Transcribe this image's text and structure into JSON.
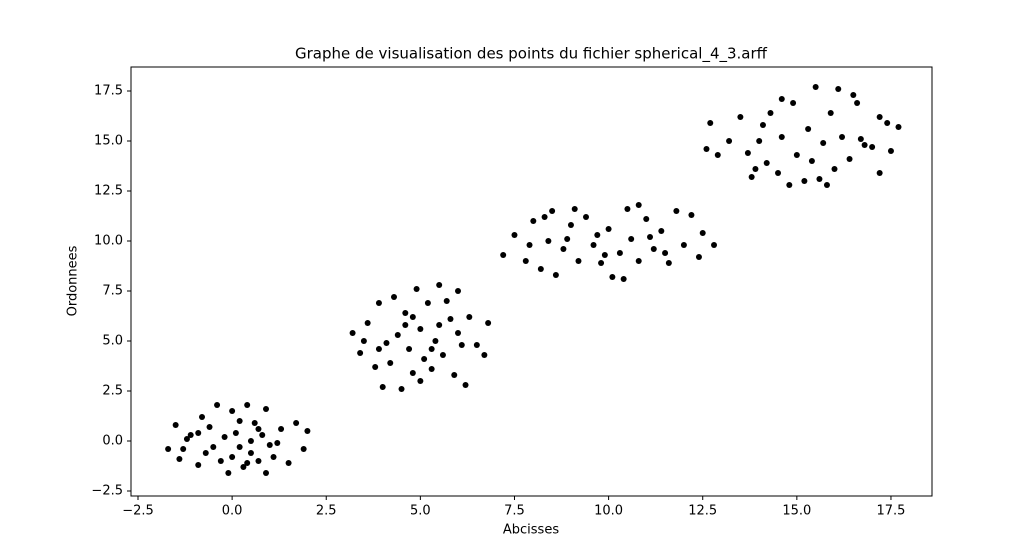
{
  "chart_data": {
    "type": "scatter",
    "title": "Graphe de visualisation des points du fichier spherical_4_3.arff",
    "x_label": "Abcisses",
    "y_label": "Ordonnees",
    "color": "#000000",
    "xlim": [
      -2.686,
      18.59
    ],
    "ylim": [
      -2.75,
      18.7
    ],
    "xticks": [
      {
        "value": -2.5,
        "label": "−2.5"
      },
      {
        "value": 0,
        "label": "0.0"
      },
      2.5,
      {
        "value": 5,
        "label": "5.0"
      },
      7.5,
      {
        "value": 10,
        "label": "10.0"
      },
      12.5,
      {
        "value": 15,
        "label": "15.0"
      },
      17.5
    ],
    "yticks": [
      {
        "value": -2.5,
        "label": "−2.5"
      },
      {
        "value": 0,
        "label": "0.0"
      },
      2.5,
      {
        "value": 5,
        "label": "5.0"
      },
      7.5,
      {
        "value": 10,
        "label": "10.0"
      },
      12.5,
      {
        "value": 15,
        "label": "15.0"
      },
      17.5
    ],
    "x": [
      -1.7,
      -1.5,
      -1.3,
      -1.1,
      -0.9,
      -0.8,
      -0.6,
      -0.5,
      -0.4,
      -0.3,
      -0.2,
      0,
      0,
      0.1,
      0.2,
      0.3,
      0.4,
      0.5,
      0.6,
      0.7,
      0.8,
      0.9,
      1.0,
      1.1,
      1.3,
      1.5,
      1.7,
      1.9,
      2.0,
      -1.4,
      -0.9,
      0.2,
      0.9,
      -0.1,
      1.2,
      -0.7,
      0.5,
      -1.2,
      0.7,
      0.4,
      3.2,
      3.4,
      3.6,
      3.8,
      3.9,
      4.0,
      4.1,
      4.3,
      4.4,
      4.5,
      4.6,
      4.7,
      4.8,
      4.9,
      5.0,
      5.1,
      5.2,
      5.3,
      5.4,
      5.5,
      5.6,
      5.8,
      5.9,
      6.0,
      6.1,
      6.2,
      6.3,
      6.5,
      6.7,
      6.8,
      3.5,
      4.2,
      5.7,
      4.6,
      5.3,
      6.0,
      3.9,
      5.0,
      4.8,
      5.5,
      7.2,
      7.5,
      7.8,
      8.0,
      8.2,
      8.4,
      8.5,
      8.6,
      8.8,
      9.0,
      9.2,
      9.4,
      9.6,
      9.8,
      10.0,
      10.1,
      10.3,
      10.5,
      10.6,
      10.8,
      11.0,
      11.2,
      11.4,
      11.6,
      11.8,
      12.0,
      12.2,
      12.5,
      12.8,
      12.4,
      8.3,
      9.1,
      10.8,
      11.5,
      7.9,
      9.7,
      10.4,
      9.9,
      8.9,
      11.1,
      12.6,
      12.7,
      12.9,
      13.2,
      13.5,
      13.7,
      13.8,
      14.0,
      14.2,
      14.3,
      14.5,
      14.6,
      14.8,
      14.9,
      15.0,
      15.2,
      15.3,
      15.5,
      15.6,
      15.7,
      15.9,
      16.0,
      16.1,
      16.2,
      16.4,
      16.6,
      16.7,
      17.0,
      17.2,
      17.4,
      17.5,
      17.7,
      17.2,
      14.1,
      15.4,
      16.5,
      13.9,
      15.8,
      16.8,
      14.6
    ],
    "values": [
      -0.4,
      0.8,
      -0.4,
      0.3,
      -1.2,
      1.2,
      0.7,
      -0.3,
      1.8,
      -1.0,
      0.2,
      -0.8,
      1.5,
      0.4,
      -0.3,
      -1.3,
      1.8,
      -0.6,
      0.9,
      -1.0,
      0.3,
      1.6,
      -0.2,
      -0.8,
      0.6,
      -1.1,
      0.9,
      -0.4,
      0.5,
      -0.9,
      0.4,
      1.0,
      -1.6,
      -1.6,
      -0.1,
      -0.6,
      0.0,
      0.1,
      0.6,
      -1.1,
      5.4,
      4.4,
      5.9,
      3.7,
      6.9,
      2.7,
      4.9,
      7.2,
      5.3,
      2.6,
      6.4,
      4.6,
      3.4,
      7.6,
      5.6,
      4.1,
      6.9,
      3.6,
      5.0,
      7.8,
      4.3,
      6.1,
      3.3,
      5.4,
      4.8,
      2.8,
      6.2,
      4.8,
      4.3,
      5.9,
      5.0,
      3.9,
      7.0,
      5.8,
      4.6,
      7.5,
      4.6,
      3.0,
      6.2,
      5.8,
      9.3,
      10.3,
      9.0,
      11.0,
      8.6,
      10.0,
      11.5,
      8.3,
      9.6,
      10.8,
      9.0,
      11.2,
      9.8,
      8.9,
      10.6,
      8.2,
      9.4,
      11.6,
      10.1,
      9.0,
      11.1,
      9.6,
      10.5,
      8.9,
      11.5,
      9.8,
      11.3,
      10.4,
      9.8,
      9.2,
      11.2,
      11.6,
      11.8,
      9.4,
      9.8,
      10.3,
      8.1,
      9.3,
      10.1,
      10.2,
      14.6,
      15.9,
      14.3,
      15.0,
      16.2,
      14.4,
      13.2,
      15.0,
      13.9,
      16.4,
      13.4,
      15.2,
      12.8,
      16.9,
      14.3,
      13.0,
      15.6,
      17.7,
      13.1,
      14.9,
      16.4,
      13.6,
      17.6,
      15.2,
      14.1,
      16.9,
      15.1,
      14.7,
      16.2,
      15.9,
      14.5,
      15.7,
      13.4,
      15.8,
      14.0,
      17.3,
      13.6,
      12.8,
      14.8,
      17.1
    ]
  }
}
